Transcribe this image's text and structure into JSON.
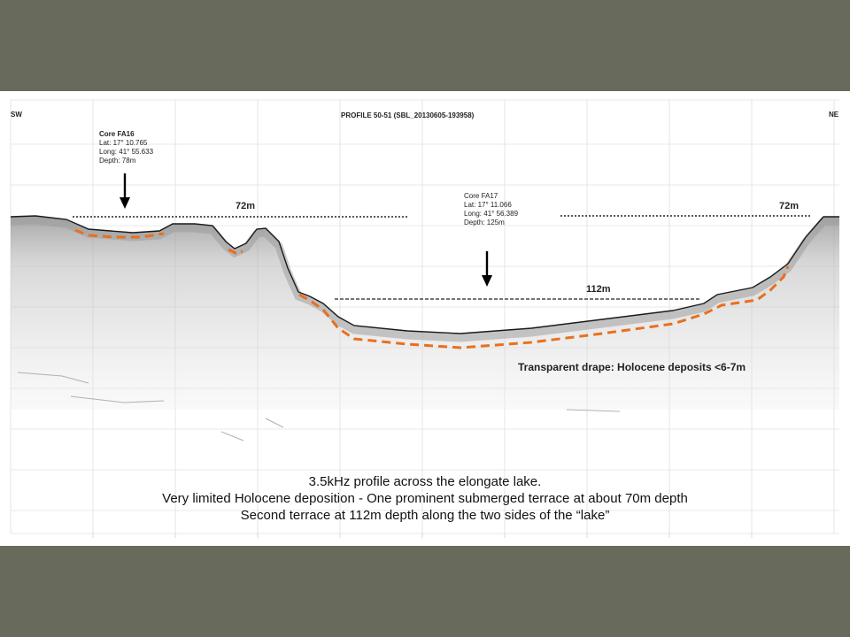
{
  "profile": {
    "title": "PROFILE 50-51 (SBL_20130605-193958)",
    "sw_label": "SW",
    "ne_label": "NE",
    "core_fa16": {
      "name": "Core FA16",
      "lat": "Lat: 17° 10.765",
      "long": "Long: 41° 55.633",
      "depth": "Depth: 78m"
    },
    "core_fa17": {
      "name": "Core FA17",
      "lat": "Lat: 17° 11.066",
      "long": "Long: 41° 56.389",
      "depth": "Depth: 125m"
    },
    "terrace_left_label": "72m",
    "terrace_right_label": "72m",
    "basin_label": "112m",
    "drape_label": "Transparent drape: Holocene deposits <6-7m"
  },
  "caption": {
    "line1": "3.5kHz profile across the elongate lake.",
    "line2": "Very limited Holocene deposition - One prominent submerged terrace at about 70m depth",
    "line3": "Second terrace at 112m depth along the two sides of the “lake”"
  },
  "colors": {
    "background": "#686a5c",
    "panel": "#ffffff",
    "holocene_line": "#e8701e"
  }
}
